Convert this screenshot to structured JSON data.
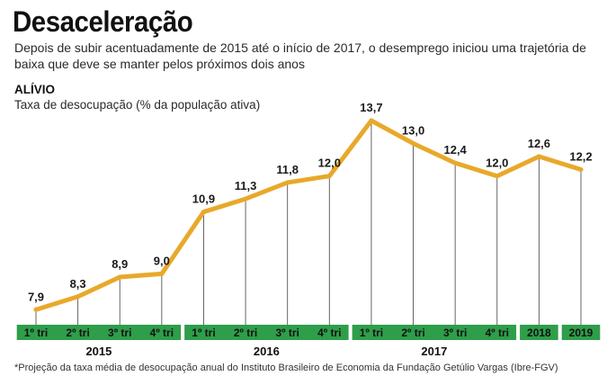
{
  "header": {
    "title": "Desaceleração",
    "subtitle": "Depois de subir acentuadamente de 2015 até o início de 2017, o desemprego iniciou uma trajetória de baixa que deve se manter pelos próximos dois anos"
  },
  "chart_data": {
    "type": "line",
    "title": "ALÍVIO",
    "ylabel": "Taxa de desocupação (% da população ativa)",
    "xlabel": "",
    "categories": [
      "1º tri",
      "2º tri",
      "3º tri",
      "4º tri",
      "1º tri",
      "2º tri",
      "3º tri",
      "4º tri",
      "1º tri",
      "2º tri",
      "3º tri",
      "4º tri",
      "2018",
      "2019"
    ],
    "groups": [
      {
        "label": "2015",
        "start": 0,
        "end": 3
      },
      {
        "label": "2016",
        "start": 4,
        "end": 7
      },
      {
        "label": "2017",
        "start": 8,
        "end": 11
      }
    ],
    "series": [
      {
        "values": [
          7.9,
          8.3,
          8.9,
          9.0,
          10.9,
          11.3,
          11.8,
          12.0,
          13.7,
          13.0,
          12.4,
          12.0,
          12.6,
          12.2
        ],
        "labels": [
          "7,9",
          "8,3",
          "8,9",
          "9,0",
          "10,9",
          "11,3",
          "11,8",
          "12,0",
          "13,7",
          "13,0",
          "12,4",
          "12,0",
          "12,6",
          "12,2"
        ]
      }
    ],
    "ylim": [
      6.5,
      14.2
    ],
    "grid": false,
    "colors": {
      "line": "#e8a92a",
      "band": "#2e9e4a",
      "band_text": "#111111",
      "vlines": "#555555"
    }
  },
  "footnote": "*Projeção da taxa média de desocupação anual do Instituto Brasileiro de Economia da Fundação Getúlio Vargas (Ibre-FGV)"
}
